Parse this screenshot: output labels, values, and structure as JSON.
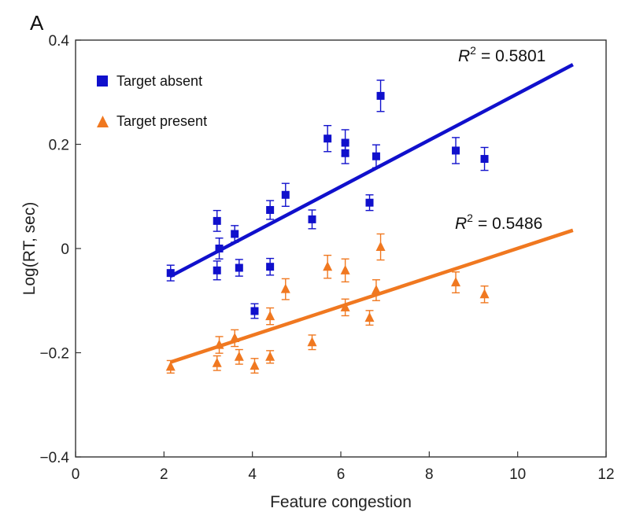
{
  "panel_label": "A",
  "chart_data": {
    "type": "scatter",
    "xlabel": "Feature congestion",
    "ylabel": "Log(RT, sec)",
    "xlim": [
      0,
      12
    ],
    "ylim": [
      -0.4,
      0.4
    ],
    "x_ticks": [
      0,
      2,
      4,
      6,
      8,
      10,
      12
    ],
    "x_tick_labels": [
      "0",
      "2",
      "4",
      "6",
      "8",
      "10",
      "12"
    ],
    "y_ticks": [
      0.4,
      0.2,
      0,
      -0.2,
      -0.4
    ],
    "y_tick_labels": [
      "0.4",
      "0.2",
      "0",
      "−0.2",
      "−0.4"
    ],
    "grid": false,
    "legend_position": "top-left",
    "series": [
      {
        "name": "Target absent",
        "marker": "square",
        "color": "#1010cc",
        "points": [
          {
            "x": 2.15,
            "y": -0.047,
            "err": 0.015
          },
          {
            "x": 3.2,
            "y": 0.053,
            "err": 0.02
          },
          {
            "x": 3.2,
            "y": -0.042,
            "err": 0.018
          },
          {
            "x": 3.25,
            "y": 0.0,
            "err": 0.02
          },
          {
            "x": 3.6,
            "y": 0.028,
            "err": 0.016
          },
          {
            "x": 3.7,
            "y": -0.037,
            "err": 0.016
          },
          {
            "x": 4.05,
            "y": -0.12,
            "err": 0.014
          },
          {
            "x": 4.4,
            "y": 0.074,
            "err": 0.018
          },
          {
            "x": 4.4,
            "y": -0.035,
            "err": 0.016
          },
          {
            "x": 4.75,
            "y": 0.103,
            "err": 0.022
          },
          {
            "x": 5.35,
            "y": 0.056,
            "err": 0.018
          },
          {
            "x": 5.7,
            "y": 0.211,
            "err": 0.025
          },
          {
            "x": 6.1,
            "y": 0.203,
            "err": 0.025
          },
          {
            "x": 6.1,
            "y": 0.183,
            "err": 0.02
          },
          {
            "x": 6.65,
            "y": 0.088,
            "err": 0.015
          },
          {
            "x": 6.8,
            "y": 0.177,
            "err": 0.022
          },
          {
            "x": 6.9,
            "y": 0.293,
            "err": 0.03
          },
          {
            "x": 8.6,
            "y": 0.188,
            "err": 0.025
          },
          {
            "x": 9.25,
            "y": 0.172,
            "err": 0.022
          }
        ],
        "fit": {
          "x": [
            2.15,
            11.25
          ],
          "y": [
            -0.053,
            0.353
          ],
          "r2_label": "R",
          "r2_sup": "2",
          "r2_value": "= 0.5801"
        }
      },
      {
        "name": "Target present",
        "marker": "triangle",
        "color": "#f07820",
        "points": [
          {
            "x": 2.15,
            "y": -0.227,
            "err": 0.012
          },
          {
            "x": 3.2,
            "y": -0.22,
            "err": 0.014
          },
          {
            "x": 3.25,
            "y": -0.185,
            "err": 0.016
          },
          {
            "x": 3.6,
            "y": -0.172,
            "err": 0.016
          },
          {
            "x": 3.7,
            "y": -0.208,
            "err": 0.014
          },
          {
            "x": 4.05,
            "y": -0.225,
            "err": 0.014
          },
          {
            "x": 4.4,
            "y": -0.208,
            "err": 0.012
          },
          {
            "x": 4.4,
            "y": -0.13,
            "err": 0.016
          },
          {
            "x": 4.75,
            "y": -0.078,
            "err": 0.02
          },
          {
            "x": 5.35,
            "y": -0.18,
            "err": 0.014
          },
          {
            "x": 5.7,
            "y": -0.035,
            "err": 0.022
          },
          {
            "x": 6.1,
            "y": -0.042,
            "err": 0.022
          },
          {
            "x": 6.1,
            "y": -0.113,
            "err": 0.016
          },
          {
            "x": 6.65,
            "y": -0.133,
            "err": 0.014
          },
          {
            "x": 6.8,
            "y": -0.08,
            "err": 0.02
          },
          {
            "x": 6.9,
            "y": 0.003,
            "err": 0.025
          },
          {
            "x": 8.6,
            "y": -0.065,
            "err": 0.02
          },
          {
            "x": 9.25,
            "y": -0.088,
            "err": 0.016
          }
        ],
        "fit": {
          "x": [
            2.15,
            11.25
          ],
          "y": [
            -0.218,
            0.035
          ],
          "r2_label": "R",
          "r2_sup": "2",
          "r2_value": "= 0.5486"
        }
      }
    ]
  }
}
